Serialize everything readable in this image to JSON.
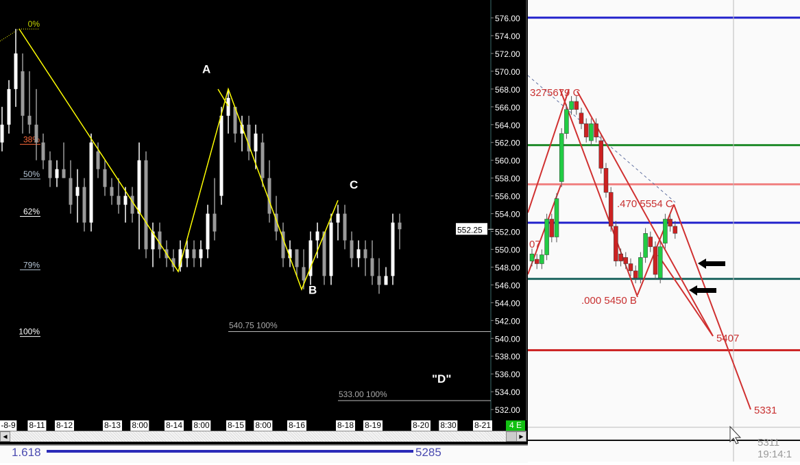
{
  "chart_data": [
    {
      "type": "candlestick",
      "theme": "dark",
      "price_axis": {
        "min": 532,
        "max": 576,
        "step": 2,
        "ticks": [
          "576.00",
          "574.00",
          "572.00",
          "570.00",
          "568.00",
          "566.00",
          "564.00",
          "562.00",
          "560.00",
          "558.00",
          "556.00",
          "554.00",
          "552.00",
          "550.00",
          "548.00",
          "546.00",
          "544.00",
          "542.00",
          "540.00",
          "538.00",
          "536.00",
          "534.00",
          "532.00"
        ]
      },
      "current_price": {
        "value": 552.25,
        "label": "552.25"
      },
      "x_ticks": [
        "-8-9",
        "8-11",
        "8-12",
        "8-13",
        "8:00",
        "8-14",
        "8:00",
        "8-15",
        "8:00",
        "8-16",
        "8-18",
        "8-19",
        "8-20",
        "8:30",
        "8-21"
      ],
      "corner_badge": "4 E",
      "candles_ohlc": [
        [
          562,
          566,
          561,
          564
        ],
        [
          564,
          569,
          563,
          568
        ],
        [
          568,
          574.75,
          566,
          572
        ],
        [
          570,
          572,
          563,
          565
        ],
        [
          565,
          570,
          563,
          564
        ],
        [
          564,
          568,
          560,
          562
        ],
        [
          562,
          563,
          559,
          560
        ],
        [
          560,
          561,
          557,
          558
        ],
        [
          558,
          560,
          557,
          559
        ],
        [
          559,
          562,
          558,
          558
        ],
        [
          558,
          560,
          554,
          555
        ],
        [
          556,
          559,
          553,
          557
        ],
        [
          557,
          558,
          552,
          553
        ],
        [
          553,
          563,
          552,
          562
        ],
        [
          561,
          562,
          558,
          559
        ],
        [
          559,
          560,
          556,
          557
        ],
        [
          557,
          558,
          555,
          556
        ],
        [
          556,
          558,
          554,
          555
        ],
        [
          555,
          557,
          553,
          556
        ],
        [
          556,
          557,
          553,
          554
        ],
        [
          554,
          562,
          550,
          560
        ],
        [
          560,
          561,
          549,
          550
        ],
        [
          550,
          553,
          548,
          552
        ],
        [
          552,
          553,
          549,
          550
        ],
        [
          550,
          551,
          548,
          549
        ],
        [
          549,
          550,
          547.5,
          548
        ],
        [
          548,
          551,
          547.5,
          550
        ],
        [
          549,
          551,
          548,
          550
        ],
        [
          550,
          551,
          548,
          549
        ],
        [
          549,
          551,
          548,
          550
        ],
        [
          550,
          555,
          549,
          554
        ],
        [
          554,
          558,
          551,
          552
        ],
        [
          556,
          566,
          555,
          565
        ],
        [
          565,
          568,
          563,
          567
        ],
        [
          566,
          566,
          562,
          563
        ],
        [
          563,
          565,
          561,
          564
        ],
        [
          564,
          565,
          560,
          561
        ],
        [
          561,
          564,
          559,
          563
        ],
        [
          562,
          563,
          557,
          558
        ],
        [
          558,
          560,
          553,
          554
        ],
        [
          554,
          556,
          551,
          552
        ],
        [
          552,
          553,
          548,
          549
        ],
        [
          549,
          551,
          548,
          550
        ],
        [
          550,
          550,
          547,
          548
        ],
        [
          548,
          550,
          545.5,
          546.5
        ],
        [
          547,
          552,
          546,
          551
        ],
        [
          551,
          553,
          549,
          552
        ],
        [
          552,
          552,
          546,
          547
        ],
        [
          547,
          554,
          546,
          553
        ],
        [
          553,
          555,
          551,
          554
        ],
        [
          554,
          555,
          550,
          551
        ],
        [
          551,
          552,
          548,
          549
        ],
        [
          549,
          551,
          548,
          550
        ],
        [
          550,
          551,
          547,
          549
        ],
        [
          549,
          551,
          546,
          547
        ],
        [
          547,
          549,
          545,
          546
        ],
        [
          546,
          548,
          546,
          547
        ],
        [
          547,
          554,
          546,
          553
        ],
        [
          553,
          554,
          550,
          552.25
        ]
      ],
      "up_color": "#ffffff",
      "down_color": "#9a9a9a",
      "zigzag": {
        "color": "#ffff00",
        "points": [
          [
            2.5,
            574.75
          ],
          [
            25.7,
            547.5
          ],
          [
            33,
            568
          ],
          [
            43.7,
            545.5
          ],
          [
            49,
            555.5
          ]
        ]
      },
      "wave_labels": [
        {
          "text": "A",
          "index": 30,
          "price": 569.8
        },
        {
          "text": "B",
          "index": 45.5,
          "price": 545
        },
        {
          "text": "C",
          "index": 51.5,
          "price": 556.8
        },
        {
          "text": "\"D\"",
          "index": 63.5,
          "price": 535
        }
      ],
      "fib_levels": [
        {
          "label": "0%",
          "price": 574.75,
          "color": "#c8d800"
        },
        {
          "label": "38%",
          "price": 561.8,
          "color": "#ff6a3a"
        },
        {
          "label": "50%",
          "price": 557.9,
          "color": "#b8c8d8"
        },
        {
          "label": "62%",
          "price": 553.7,
          "color": "#ffffff"
        },
        {
          "label": "79%",
          "price": 547.7,
          "color": "#b8c8d8"
        },
        {
          "label": "100%",
          "price": 540.2,
          "color": "#ffffff"
        }
      ],
      "target_lines": [
        {
          "label": "540.75 100%",
          "price": 540.75,
          "from_index": 33
        },
        {
          "label": "533.00 100%",
          "price": 533.0,
          "from_index": 49
        }
      ]
    },
    {
      "type": "candlestick",
      "theme": "light",
      "up_color": "#22cc44",
      "down_color": "#cc2222",
      "candles_oc": [
        [
          5488,
          5496
        ],
        [
          5490,
          5485
        ],
        [
          5485,
          5495
        ],
        [
          5495,
          5535
        ],
        [
          5535,
          5515
        ],
        [
          5515,
          5558
        ],
        [
          5577,
          5631
        ],
        [
          5631,
          5658
        ],
        [
          5658,
          5667
        ],
        [
          5667,
          5658
        ],
        [
          5654,
          5642
        ],
        [
          5642,
          5627
        ],
        [
          5623,
          5642
        ],
        [
          5642,
          5627
        ],
        [
          5623,
          5592
        ],
        [
          5592,
          5565
        ],
        [
          5565,
          5527
        ],
        [
          5527,
          5488
        ],
        [
          5496,
          5488
        ],
        [
          5492,
          5485
        ],
        [
          5485,
          5477
        ],
        [
          5477,
          5469
        ],
        [
          5469,
          5492
        ],
        [
          5492,
          5519
        ],
        [
          5515,
          5504
        ],
        [
          5504,
          5473
        ],
        [
          5469,
          5504
        ],
        [
          5508,
          5535
        ],
        [
          5535,
          5527
        ],
        [
          5527,
          5519
        ]
      ],
      "levels": [
        {
          "price": 5761,
          "color": "#2222cc"
        },
        {
          "price": 5618,
          "color": "#1f8a2a"
        },
        {
          "price": 5574,
          "color": "#f08080"
        },
        {
          "price": 5531,
          "color": "#2222cc"
        },
        {
          "price": 5468,
          "color": "#1f6660"
        },
        {
          "price": 5388,
          "color": "#cc2222"
        }
      ],
      "annotations": [
        {
          "text": "3275679 C"
        },
        {
          "text": ".470 5554 C"
        },
        {
          "text": ".000 5450 B"
        },
        {
          "text": "5407"
        },
        {
          "text": "5331"
        },
        {
          "text": "07"
        }
      ],
      "status_text": [
        "5311",
        "19:14:1"
      ],
      "bottom_fib": {
        "ratio": "1.618",
        "value": "5285",
        "color": "#2a2ab8"
      }
    }
  ]
}
